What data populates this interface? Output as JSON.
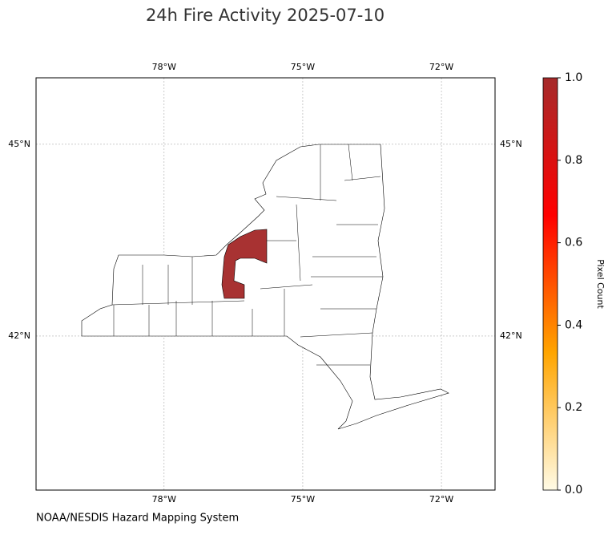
{
  "title": "24h Fire Activity 2025-07-10",
  "map": {
    "extent": [
      -80.77,
      -70.84,
      39.59,
      46.04
    ],
    "lon_ticks": [
      {
        "value": -78,
        "label": "78°W"
      },
      {
        "value": -75,
        "label": "75°W"
      },
      {
        "value": -72,
        "label": "72°W"
      }
    ],
    "lat_ticks": [
      {
        "value": 45,
        "label": "45°N"
      },
      {
        "value": 42,
        "label": "42°N"
      }
    ],
    "grid": true,
    "fire_color": "#a83232"
  },
  "colorbar": {
    "label": "Pixel Count",
    "range": [
      0,
      1
    ],
    "ticks": [
      {
        "value": 0,
        "label": "0.0"
      },
      {
        "value": 0.2,
        "label": "0.2"
      },
      {
        "value": 0.4,
        "label": "0.4"
      },
      {
        "value": 0.6,
        "label": "0.6"
      },
      {
        "value": 0.8,
        "label": "0.8"
      },
      {
        "value": 1,
        "label": "1.0"
      }
    ],
    "colors": [
      "#fffbe6",
      "#ffa500",
      "#ff0000",
      "#a52a2a"
    ]
  },
  "source": "NOAA/NESDIS Hazard Mapping System"
}
